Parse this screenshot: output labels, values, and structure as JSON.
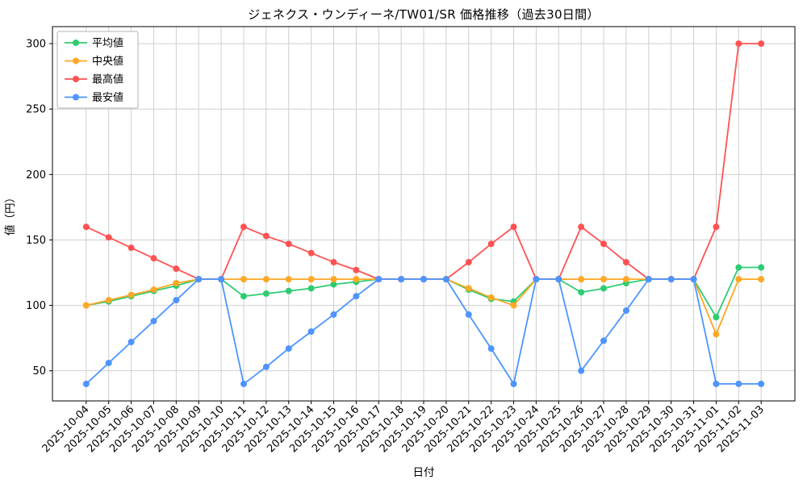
{
  "figure": {
    "background": "#ffffff"
  },
  "chart_data": {
    "type": "line",
    "title": "ジェネクス・ウンディーネ/TW01/SR 価格推移（過去30日間）",
    "xlabel": "日付",
    "ylabel": "値（円）",
    "x_categories": [
      "2025-10-04",
      "2025-10-05",
      "2025-10-06",
      "2025-10-07",
      "2025-10-08",
      "2025-10-09",
      "2025-10-10",
      "2025-10-11",
      "2025-10-12",
      "2025-10-13",
      "2025-10-14",
      "2025-10-15",
      "2025-10-16",
      "2025-10-17",
      "2025-10-18",
      "2025-10-19",
      "2025-10-20",
      "2025-10-21",
      "2025-10-22",
      "2025-10-23",
      "2025-10-24",
      "2025-10-25",
      "2025-10-26",
      "2025-10-27",
      "2025-10-28",
      "2025-10-29",
      "2025-10-30",
      "2025-10-31",
      "2025-11-01",
      "2025-11-02",
      "2025-11-03"
    ],
    "series": [
      {
        "name": "平均値",
        "color": "#2ecc71",
        "values": [
          100,
          103,
          107,
          111,
          115,
          120,
          120,
          107,
          109,
          111,
          113,
          116,
          118,
          120,
          120,
          120,
          120,
          112,
          105,
          103,
          120,
          120,
          110,
          113,
          117,
          120,
          120,
          120,
          91,
          129,
          129
        ]
      },
      {
        "name": "中央値",
        "color": "#ffa726",
        "values": [
          100,
          104,
          108,
          112,
          117,
          120,
          120,
          120,
          120,
          120,
          120,
          120,
          120,
          120,
          120,
          120,
          120,
          113,
          106,
          100,
          120,
          120,
          120,
          120,
          120,
          120,
          120,
          120,
          78,
          120,
          120
        ]
      },
      {
        "name": "最高値",
        "color": "#ff5252",
        "values": [
          160,
          152,
          144,
          136,
          128,
          120,
          120,
          160,
          153,
          147,
          140,
          133,
          127,
          120,
          120,
          120,
          120,
          133,
          147,
          160,
          120,
          120,
          160,
          147,
          133,
          120,
          120,
          120,
          160,
          300,
          300
        ]
      },
      {
        "name": "最安値",
        "color": "#4d94ff",
        "values": [
          40,
          56,
          72,
          88,
          104,
          120,
          120,
          40,
          53,
          67,
          80,
          93,
          107,
          120,
          120,
          120,
          120,
          93,
          67,
          40,
          120,
          120,
          50,
          73,
          96,
          120,
          120,
          120,
          40,
          40,
          40
        ]
      }
    ],
    "yticks": [
      50,
      100,
      150,
      200,
      250,
      300
    ],
    "ylim": [
      27,
      313
    ],
    "grid": true,
    "legend": {
      "position": "upper-left",
      "entries": [
        "平均値",
        "中央値",
        "最高値",
        "最安値"
      ]
    },
    "marker": "circle",
    "colors": {
      "grid": "#cfcfcf",
      "axis": "#000000",
      "background": "#ffffff"
    }
  }
}
